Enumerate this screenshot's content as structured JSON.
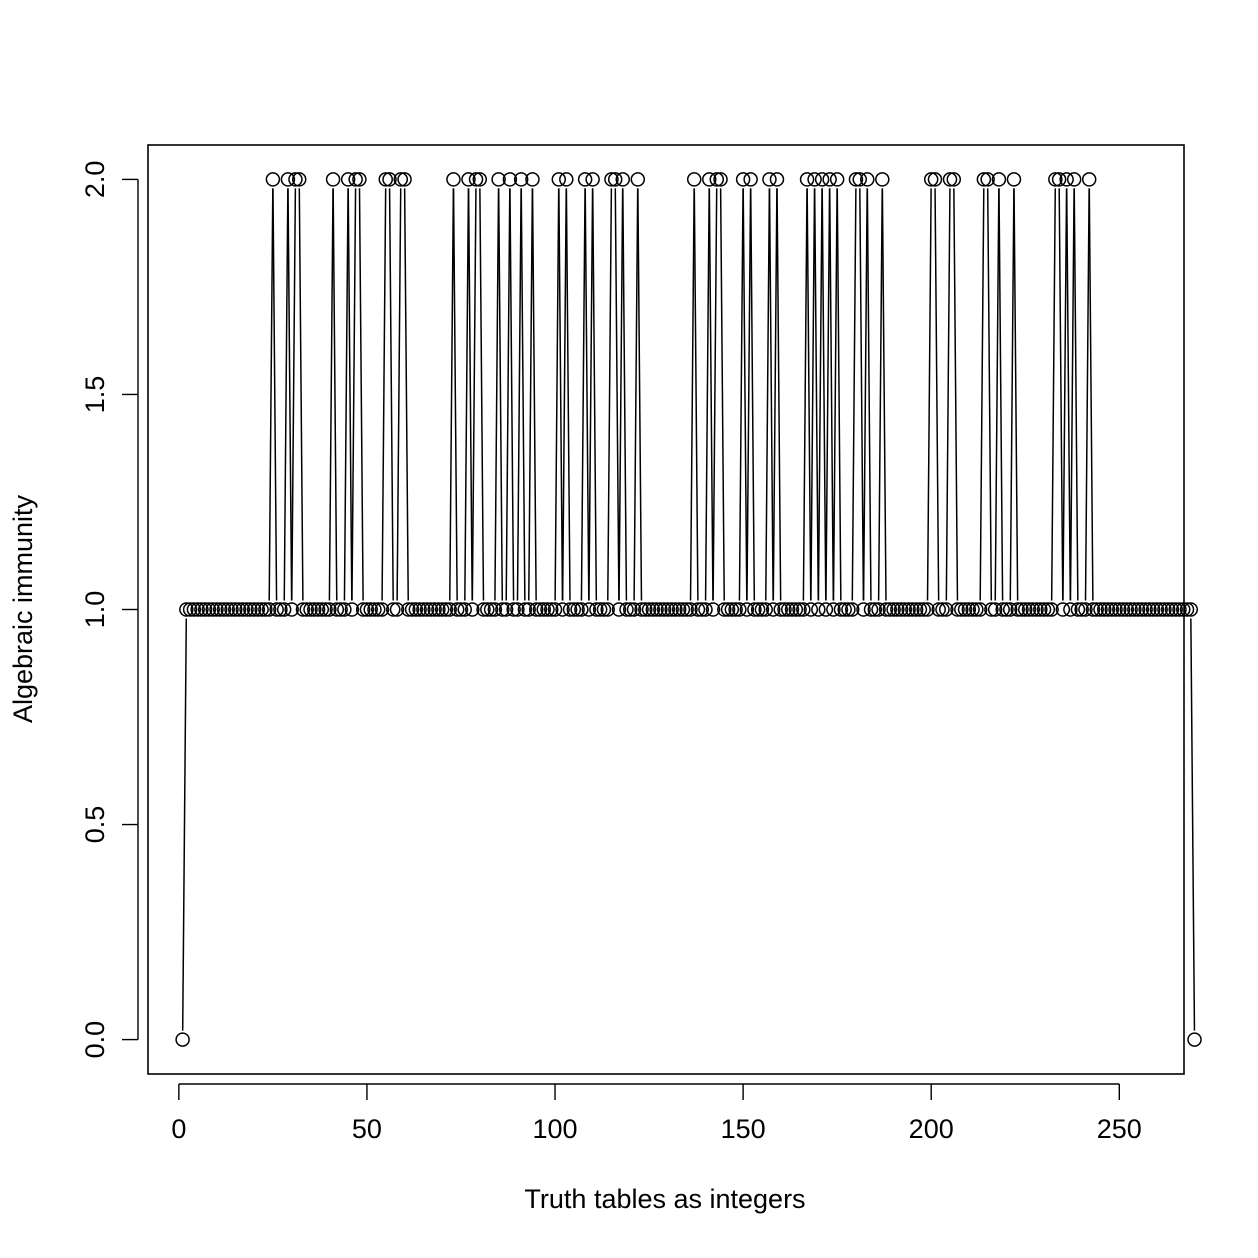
{
  "chart_data": {
    "type": "line",
    "plot_style": "b",
    "title": "",
    "xlabel": "Truth tables as integers",
    "ylabel": "Algebraic immunity",
    "xlim": [
      -8.2,
      267.2
    ],
    "ylim": [
      -0.08,
      2.08
    ],
    "xticks": [
      0,
      50,
      100,
      150,
      200,
      250
    ],
    "yticks": [
      0.0,
      0.5,
      1.0,
      1.5,
      2.0
    ],
    "xtick_labels": [
      "0",
      "50",
      "100",
      "150",
      "200",
      "250"
    ],
    "ytick_labels": [
      "0.0",
      "0.5",
      "1.0",
      "1.5",
      "2.0"
    ],
    "series": [
      {
        "x_start": 1,
        "x_step": 1,
        "values": [
          0,
          1,
          1,
          1,
          1,
          1,
          1,
          1,
          1,
          1,
          1,
          1,
          1,
          1,
          1,
          1,
          1,
          1,
          1,
          1,
          1,
          1,
          1,
          1,
          2,
          1,
          1,
          1,
          2,
          1,
          2,
          2,
          1,
          1,
          1,
          1,
          1,
          1,
          1,
          1,
          2,
          1,
          1,
          1,
          2,
          1,
          2,
          2,
          1,
          1,
          1,
          1,
          1,
          1,
          2,
          2,
          1,
          1,
          2,
          2,
          1,
          1,
          1,
          1,
          1,
          1,
          1,
          1,
          1,
          1,
          1,
          1,
          2,
          1,
          1,
          1,
          2,
          1,
          2,
          2,
          1,
          1,
          1,
          1,
          2,
          1,
          1,
          2,
          1,
          1,
          2,
          1,
          1,
          2,
          1,
          1,
          1,
          1,
          1,
          1,
          2,
          1,
          2,
          1,
          1,
          1,
          1,
          2,
          1,
          2,
          1,
          1,
          1,
          1,
          2,
          2,
          1,
          2,
          1,
          1,
          1,
          2,
          1,
          1,
          1,
          1,
          1,
          1,
          1,
          1,
          1,
          1,
          1,
          1,
          1,
          1,
          2,
          1,
          1,
          1,
          2,
          1,
          2,
          2,
          1,
          1,
          1,
          1,
          1,
          2,
          1,
          2,
          1,
          1,
          1,
          1,
          2,
          1,
          2,
          1,
          1,
          1,
          1,
          1,
          1,
          1,
          2,
          1,
          2,
          1,
          2,
          1,
          2,
          1,
          2,
          1,
          1,
          1,
          1,
          2,
          2,
          1,
          2,
          1,
          1,
          1,
          2,
          1,
          1,
          1,
          1,
          1,
          1,
          1,
          1,
          1,
          1,
          1,
          1,
          2,
          2,
          1,
          1,
          1,
          2,
          2,
          1,
          1,
          1,
          1,
          1,
          1,
          1,
          2,
          2,
          1,
          1,
          2,
          1,
          1,
          1,
          2,
          1,
          1,
          1,
          1,
          1,
          1,
          1,
          1,
          1,
          1,
          2,
          2,
          1,
          2,
          1,
          2,
          1,
          1,
          1,
          2,
          1,
          1,
          1,
          1,
          1,
          1,
          1,
          1,
          1,
          1,
          1,
          1,
          1,
          1,
          1,
          1,
          1,
          1,
          1,
          1,
          1,
          1,
          1,
          1,
          1,
          1,
          1,
          0
        ]
      }
    ]
  }
}
